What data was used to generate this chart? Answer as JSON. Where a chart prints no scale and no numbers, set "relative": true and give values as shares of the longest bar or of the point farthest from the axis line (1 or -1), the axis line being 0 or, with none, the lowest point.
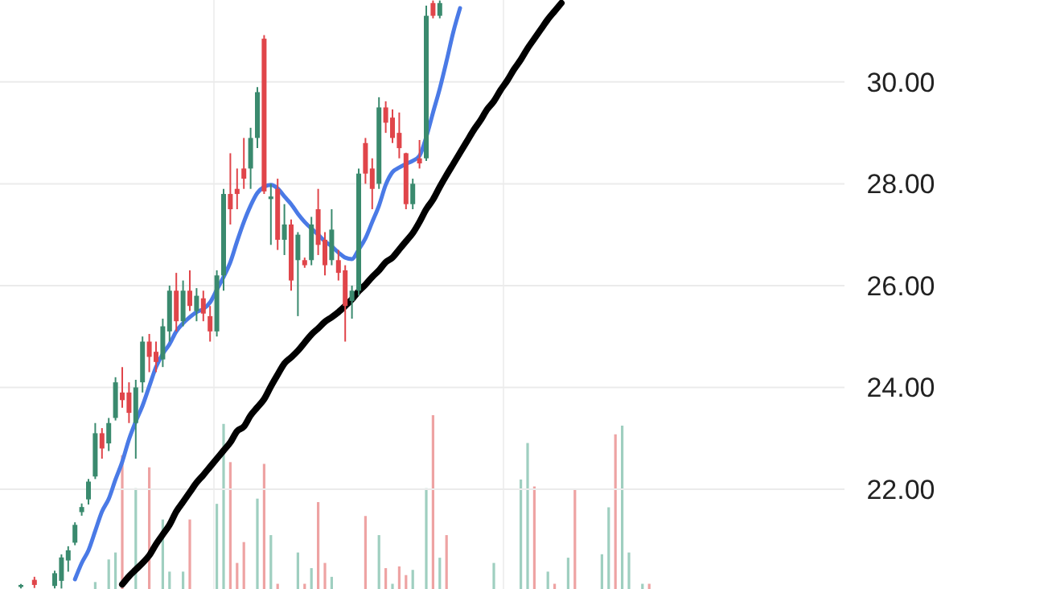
{
  "chart_data": [
    {
      "type": "candlestick",
      "categories": [
        null,
        null,
        null,
        null,
        null,
        null,
        null,
        null,
        null,
        null,
        null,
        null,
        null,
        null,
        null,
        null,
        null,
        null,
        null,
        null,
        null,
        null,
        null,
        null,
        null,
        null,
        null,
        null,
        null,
        null,
        null,
        null,
        null,
        null,
        null,
        null,
        null,
        null,
        null,
        null,
        null,
        null,
        null,
        null,
        null,
        null,
        null,
        null,
        null,
        null,
        null,
        null,
        null,
        null,
        null,
        null,
        null,
        null,
        null,
        null,
        null,
        null,
        null,
        null,
        null,
        null,
        null,
        null,
        null,
        null,
        null,
        null,
        null,
        null,
        null,
        null,
        null,
        null,
        null,
        null,
        null,
        null,
        null,
        null,
        null,
        null,
        null,
        null,
        null,
        null,
        null,
        null,
        null,
        null
      ],
      "ohlc": [
        [
          20.08,
          20.14,
          20.05,
          20.12
        ],
        null,
        [
          20.22,
          20.28,
          20.06,
          20.12
        ],
        null,
        null,
        [
          20.1,
          20.4,
          20.05,
          20.35
        ],
        [
          20.2,
          20.72,
          20.05,
          20.66
        ],
        [
          20.6,
          20.88,
          20.38,
          20.8
        ],
        [
          20.95,
          21.35,
          20.9,
          21.3
        ],
        [
          21.55,
          21.72,
          21.48,
          21.65
        ],
        [
          21.8,
          22.2,
          21.7,
          22.15
        ],
        [
          22.25,
          23.3,
          22.2,
          23.1
        ],
        [
          23.1,
          23.2,
          22.6,
          22.8
        ],
        [
          22.9,
          23.4,
          22.75,
          23.3
        ],
        [
          23.4,
          24.2,
          23.35,
          24.1
        ],
        [
          23.9,
          24.4,
          23.6,
          23.75
        ],
        [
          23.9,
          24.1,
          23.3,
          23.5
        ],
        [
          23.3,
          24.15,
          22.6,
          24.0
        ],
        [
          24.1,
          25.0,
          23.9,
          24.9
        ],
        [
          24.9,
          25.05,
          24.3,
          24.6
        ],
        [
          24.7,
          24.9,
          24.3,
          24.5
        ],
        [
          24.55,
          25.35,
          24.4,
          25.2
        ],
        [
          25.1,
          26.0,
          24.9,
          25.9
        ],
        [
          25.9,
          26.25,
          25.1,
          25.3
        ],
        [
          25.3,
          26.1,
          25.2,
          25.9
        ],
        [
          25.9,
          26.3,
          25.5,
          25.6
        ],
        [
          25.5,
          25.95,
          25.3,
          25.8
        ],
        [
          25.75,
          25.9,
          25.3,
          25.45
        ],
        [
          25.4,
          25.6,
          24.9,
          25.1
        ],
        [
          25.1,
          26.3,
          25.0,
          26.2
        ],
        [
          26.2,
          27.9,
          25.9,
          27.8
        ],
        [
          27.8,
          28.6,
          27.2,
          27.5
        ],
        [
          27.9,
          28.3,
          27.5,
          27.8
        ],
        [
          28.3,
          28.9,
          27.9,
          28.1
        ],
        [
          28.3,
          29.1,
          27.9,
          28.9
        ],
        [
          28.9,
          29.9,
          28.7,
          29.8
        ],
        [
          30.85,
          30.92,
          27.8,
          27.85
        ],
        [
          27.7,
          28.0,
          26.8,
          27.75
        ],
        [
          27.9,
          28.1,
          26.7,
          26.9
        ],
        [
          26.9,
          27.6,
          26.6,
          27.2
        ],
        [
          27.2,
          27.3,
          25.9,
          26.1
        ],
        [
          26.5,
          27.05,
          25.4,
          27.0
        ],
        [
          26.5,
          26.55,
          26.35,
          26.4
        ],
        [
          26.5,
          27.35,
          26.4,
          27.2
        ],
        [
          27.5,
          27.9,
          26.6,
          26.8
        ],
        [
          26.9,
          27.05,
          26.2,
          26.4
        ],
        [
          26.5,
          27.5,
          26.4,
          27.1
        ],
        [
          26.5,
          26.7,
          26.1,
          26.25
        ],
        [
          26.3,
          26.4,
          24.9,
          25.6
        ],
        [
          25.7,
          26.0,
          25.35,
          25.9
        ],
        [
          25.9,
          28.3,
          25.8,
          28.2
        ],
        [
          28.8,
          28.9,
          28.0,
          28.2
        ],
        [
          28.3,
          28.5,
          27.5,
          27.9
        ],
        [
          28.0,
          29.7,
          27.9,
          29.5
        ],
        [
          29.5,
          29.62,
          29.0,
          29.2
        ],
        [
          29.3,
          29.46,
          28.8,
          28.9
        ],
        [
          29.0,
          29.4,
          28.5,
          28.7
        ],
        [
          28.6,
          28.61,
          27.5,
          27.6
        ],
        [
          27.6,
          28.1,
          27.5,
          28.0
        ],
        [
          28.5,
          28.86,
          28.3,
          28.4
        ],
        [
          28.5,
          31.5,
          28.45,
          31.3
        ],
        [
          31.55,
          31.6,
          31.25,
          31.3
        ],
        [
          31.3,
          31.6,
          31.25,
          31.55
        ],
        null,
        null,
        null,
        null,
        null,
        null,
        null,
        null,
        null,
        null,
        null,
        null,
        null,
        null,
        null,
        null,
        null,
        null,
        null,
        null,
        null,
        null,
        null,
        null,
        null,
        null,
        null,
        null,
        null,
        null,
        null
      ],
      "series": [
        {
          "type": "line",
          "color": "#4a7ae6",
          "values": [
            null,
            null,
            null,
            null,
            null,
            null,
            null,
            null,
            20.23,
            20.55,
            20.8,
            21.18,
            21.56,
            21.81,
            22.19,
            22.54,
            22.98,
            23.33,
            23.64,
            24.02,
            24.4,
            24.66,
            24.85,
            25.1,
            25.26,
            25.38,
            25.48,
            25.54,
            25.67,
            25.92,
            26.17,
            26.46,
            26.87,
            27.25,
            27.57,
            27.82,
            27.94,
            27.98,
            27.91,
            27.75,
            27.6,
            27.41,
            27.25,
            27.12,
            27.0,
            26.87,
            26.77,
            26.65,
            26.55,
            26.52,
            26.71,
            26.93,
            27.25,
            27.57,
            27.98,
            28.23,
            28.32,
            28.39,
            28.45,
            28.55,
            28.92,
            29.4,
            29.87,
            30.41,
            30.98,
            31.45,
            null,
            null,
            null,
            null,
            null,
            null,
            null,
            null,
            null,
            null,
            null,
            null,
            null,
            null,
            null,
            null,
            null,
            null,
            null,
            null,
            null,
            null,
            null,
            null,
            null,
            null,
            null,
            null
          ]
        },
        {
          "type": "line",
          "color": "#000000",
          "values": [
            null,
            null,
            null,
            null,
            null,
            null,
            null,
            null,
            null,
            null,
            null,
            null,
            null,
            null,
            null,
            20.13,
            20.29,
            20.42,
            20.55,
            20.7,
            20.92,
            21.11,
            21.3,
            21.56,
            21.75,
            21.94,
            22.13,
            22.28,
            22.44,
            22.6,
            22.76,
            22.92,
            23.14,
            23.23,
            23.45,
            23.61,
            23.77,
            24.02,
            24.25,
            24.47,
            24.59,
            24.72,
            24.88,
            25.04,
            25.16,
            25.29,
            25.38,
            25.48,
            25.6,
            25.73,
            25.89,
            26.02,
            26.17,
            26.3,
            26.46,
            26.55,
            26.71,
            26.87,
            27.03,
            27.25,
            27.5,
            27.69,
            27.94,
            28.17,
            28.39,
            28.61,
            28.83,
            29.05,
            29.24,
            29.46,
            29.62,
            29.84,
            30.03,
            30.25,
            30.44,
            30.66,
            30.85,
            31.04,
            31.23,
            31.39,
            31.55,
            null,
            null,
            null,
            null,
            null,
            null,
            null,
            null,
            null,
            null,
            null,
            null,
            null
          ]
        }
      ],
      "ylim": [
        20.04,
        31.61
      ],
      "yticks": [
        {
          "value": 22,
          "label": "22.00"
        },
        {
          "value": 24,
          "label": "24.00"
        },
        {
          "value": 26,
          "label": "26.00"
        },
        {
          "value": 28,
          "label": "28.00"
        },
        {
          "value": 30,
          "label": "30.00"
        }
      ],
      "grid": "y",
      "tick_labels": "y"
    },
    {
      "type": "bar",
      "relative": true,
      "tick_labels": false,
      "categories": [
        null,
        null,
        null,
        null,
        null,
        null,
        null,
        null,
        null,
        null,
        null,
        null,
        null,
        null,
        null,
        null,
        null,
        null,
        null,
        null,
        null,
        null,
        null,
        null,
        null,
        null,
        null,
        null,
        null,
        null,
        null,
        null,
        null,
        null,
        null,
        null,
        null,
        null,
        null,
        null,
        null,
        null,
        null,
        null,
        null,
        null,
        null,
        null,
        null,
        null,
        null,
        null,
        null,
        null,
        null,
        null,
        null,
        null,
        null,
        null,
        null,
        null,
        null,
        null,
        null,
        null,
        null,
        null,
        null,
        null,
        null,
        null,
        null,
        null,
        null,
        null,
        null,
        null,
        null,
        null,
        null,
        null,
        null,
        null,
        null,
        null,
        null,
        null,
        null,
        null,
        null,
        null,
        null,
        null
      ],
      "values": [
        null,
        null,
        null,
        null,
        null,
        null,
        null,
        null,
        null,
        null,
        null,
        0.04,
        null,
        0.17,
        0.21,
        0.77,
        null,
        0.58,
        null,
        0.7,
        null,
        0.4,
        0.1,
        null,
        0.1,
        0.4,
        null,
        null,
        null,
        0.49,
        0.95,
        0.73,
        0.15,
        0.27,
        null,
        0.52,
        0.72,
        0.31,
        0.03,
        null,
        null,
        0.21,
        0.03,
        0.12,
        0.5,
        0.15,
        0.07,
        null,
        null,
        null,
        null,
        0.42,
        null,
        0.31,
        0.12,
        0.03,
        0.13,
        0.08,
        0.11,
        null,
        0.58,
        1,
        0.18,
        0.31,
        null,
        null,
        null,
        null,
        null,
        null,
        0.15,
        null,
        null,
        null,
        0.63,
        0.84,
        0.59,
        null,
        0.1,
        0.03,
        null,
        0.18,
        0.57,
        null,
        null,
        null,
        0.2,
        0.47,
        0.89,
        0.94,
        0.21,
        null,
        0.03,
        0.03
      ],
      "colors": [
        null,
        null,
        null,
        null,
        null,
        null,
        null,
        null,
        null,
        null,
        null,
        "#9fcfc0",
        null,
        "#9fcfc0",
        "#9fcfc0",
        "#eea3a3",
        null,
        "#9fcfc0",
        null,
        "#eea3a3",
        null,
        "#9fcfc0",
        "#9fcfc0",
        null,
        "#9fcfc0",
        "#eea3a3",
        null,
        null,
        null,
        "#9fcfc0",
        "#9fcfc0",
        "#eea3a3",
        "#eea3a3",
        "#eea3a3",
        null,
        "#9fcfc0",
        "#eea3a3",
        "#9fcfc0",
        "#eea3a3",
        null,
        null,
        "#9fcfc0",
        "#eea3a3",
        "#9fcfc0",
        "#eea3a3",
        "#eea3a3",
        "#9fcfc0",
        null,
        null,
        null,
        null,
        "#eea3a3",
        null,
        "#9fcfc0",
        "#eea3a3",
        "#9fcfc0",
        "#eea3a3",
        "#eea3a3",
        "#9fcfc0",
        null,
        "#9fcfc0",
        "#eea3a3",
        "#9fcfc0",
        "#eea3a3",
        null,
        null,
        null,
        null,
        null,
        null,
        "#9fcfc0",
        null,
        null,
        null,
        "#9fcfc0",
        "#9fcfc0",
        "#eea3a3",
        null,
        "#9fcfc0",
        "#eea3a3",
        null,
        "#9fcfc0",
        "#eea3a3",
        null,
        null,
        null,
        "#9fcfc0",
        "#9fcfc0",
        "#eea3a3",
        "#9fcfc0",
        "#9fcfc0",
        null,
        "#9fcfc0",
        "#eea3a3"
      ]
    }
  ]
}
